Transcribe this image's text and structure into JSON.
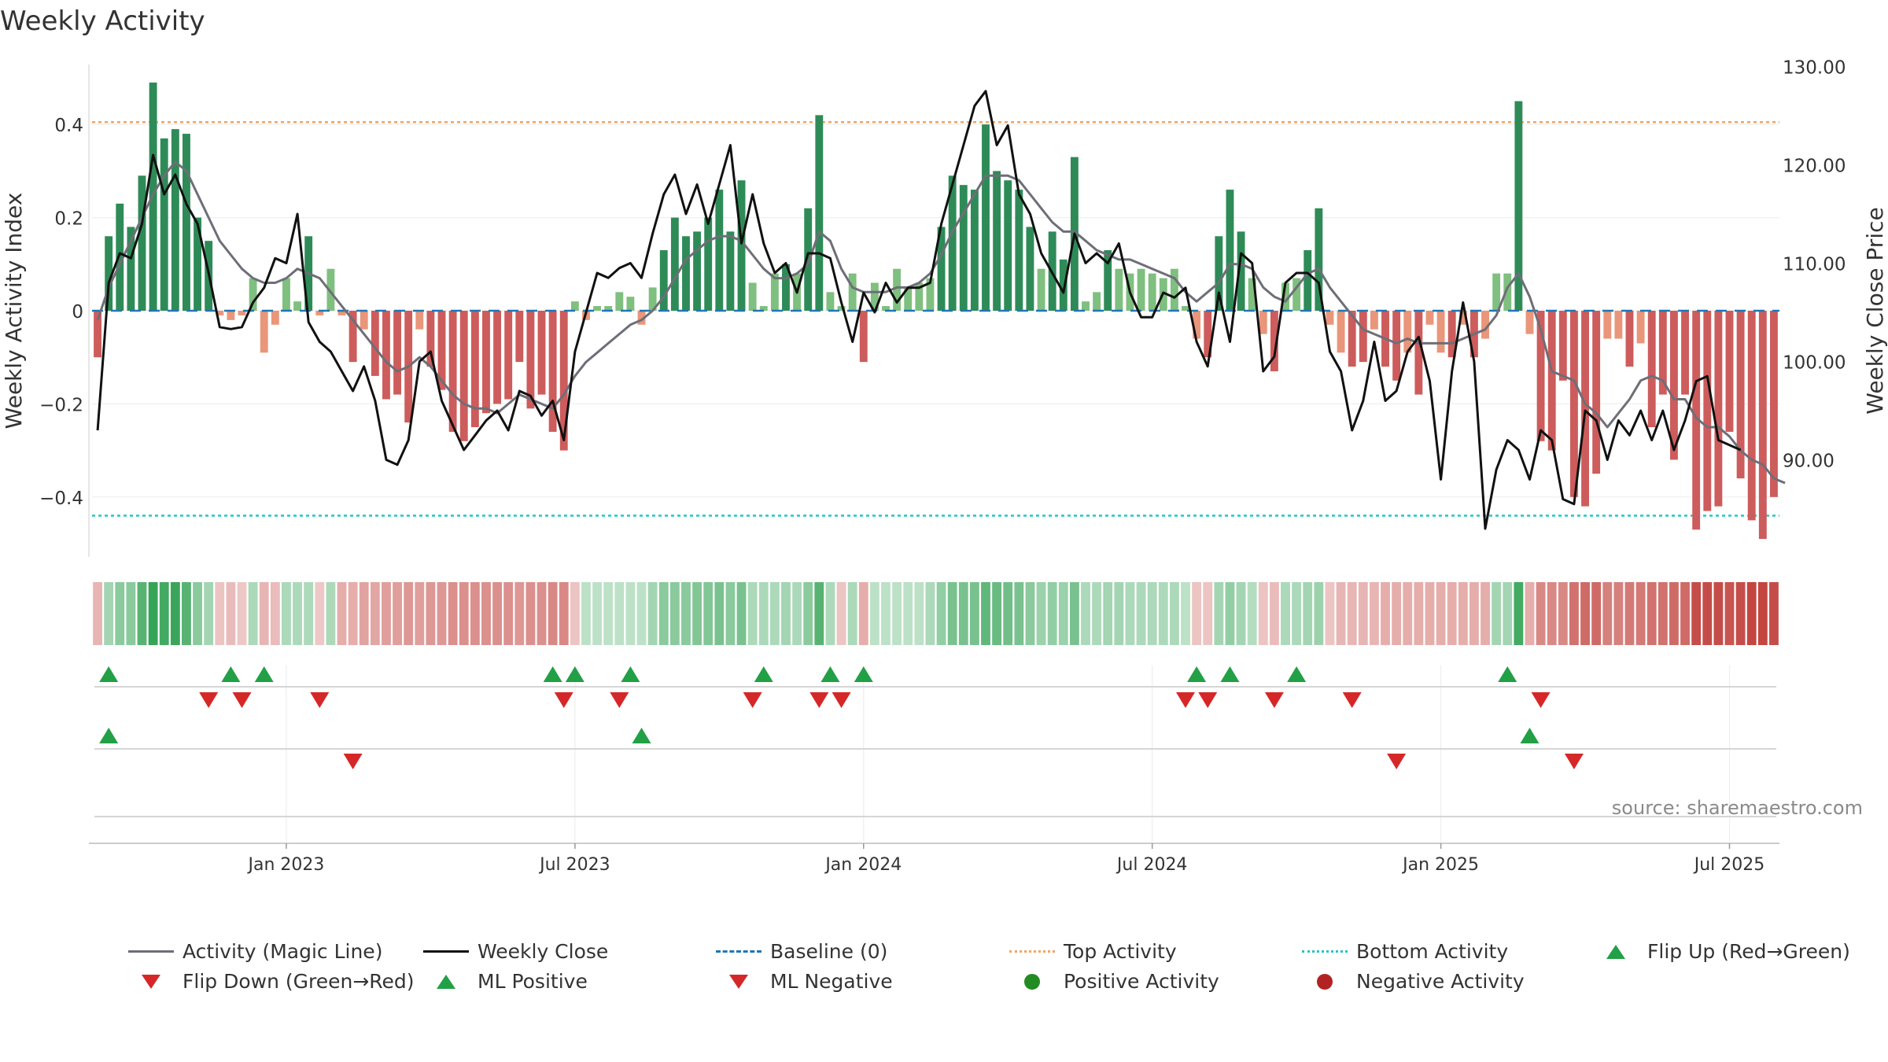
{
  "chart_data": {
    "type": "bar",
    "title": "Weekly Activity",
    "ylabel": "Weekly Activity Index",
    "y2label": "Weekly Close Price",
    "source": "source: sharemaestro.com",
    "ylim": [
      -0.5,
      0.5
    ],
    "y2lim": [
      81,
      130
    ],
    "yticks": [
      {
        "v": 0.4,
        "label": "0.4"
      },
      {
        "v": 0.2,
        "label": "0.2"
      },
      {
        "v": 0,
        "label": "0"
      },
      {
        "v": -0.2,
        "label": "−0.2"
      },
      {
        "v": -0.4,
        "label": "−0.4"
      }
    ],
    "y2ticks": [
      {
        "v": 130,
        "label": "130.00"
      },
      {
        "v": 120,
        "label": "120.00"
      },
      {
        "v": 110,
        "label": "110.00"
      },
      {
        "v": 100,
        "label": "100.00"
      },
      {
        "v": 90,
        "label": "90.00"
      }
    ],
    "xticks": [
      {
        "i": 17,
        "label": "Jan 2023"
      },
      {
        "i": 43,
        "label": "Jul 2023"
      },
      {
        "i": 69,
        "label": "Jan 2024"
      },
      {
        "i": 95,
        "label": "Jul 2024"
      },
      {
        "i": 121,
        "label": "Jan 2025"
      },
      {
        "i": 147,
        "label": "Jul 2025"
      }
    ],
    "top_activity": 0.405,
    "bottom_activity": -0.44,
    "activity": [
      -0.1,
      0.16,
      0.23,
      0.18,
      0.29,
      0.49,
      0.37,
      0.39,
      0.38,
      0.2,
      0.15,
      -0.01,
      -0.02,
      -0.01,
      0.07,
      -0.09,
      -0.03,
      0.07,
      0.02,
      0.16,
      -0.01,
      0.09,
      -0.01,
      -0.11,
      -0.04,
      -0.14,
      -0.19,
      -0.18,
      -0.24,
      -0.04,
      -0.12,
      -0.17,
      -0.26,
      -0.28,
      -0.25,
      -0.22,
      -0.2,
      -0.19,
      -0.11,
      -0.21,
      -0.18,
      -0.26,
      -0.3,
      0.02,
      -0.02,
      0.01,
      0.01,
      0.04,
      0.03,
      -0.03,
      0.05,
      0.13,
      0.2,
      0.16,
      0.17,
      0.2,
      0.26,
      0.17,
      0.28,
      0.06,
      0.01,
      0.08,
      0.1,
      0.08,
      0.22,
      0.42,
      0.04,
      0.01,
      0.08,
      -0.11,
      0.06,
      0.01,
      0.09,
      0.05,
      0.06,
      0.07,
      0.18,
      0.29,
      0.27,
      0.26,
      0.4,
      0.3,
      0.28,
      0.26,
      0.18,
      0.09,
      0.17,
      0.11,
      0.33,
      0.02,
      0.04,
      0.13,
      0.09,
      0.08,
      0.09,
      0.08,
      0.07,
      0.09,
      0.01,
      -0.06,
      -0.1,
      0.16,
      0.26,
      0.17,
      0.07,
      -0.05,
      -0.13,
      0.06,
      0.07,
      0.13,
      0.22,
      -0.03,
      -0.09,
      -0.12,
      -0.11,
      -0.04,
      -0.12,
      -0.15,
      -0.09,
      -0.18,
      -0.03,
      -0.09,
      -0.1,
      -0.03,
      -0.1,
      -0.06,
      0.08,
      0.08,
      0.45,
      -0.05,
      -0.28,
      -0.3,
      -0.15,
      -0.4,
      -0.42,
      -0.35,
      -0.06,
      -0.06,
      -0.12,
      -0.07,
      -0.25,
      -0.18,
      -0.32,
      -0.18,
      -0.47,
      -0.43,
      -0.42,
      -0.26,
      -0.36,
      -0.45,
      -0.49,
      -0.4
    ],
    "magic_line": [
      -0.02,
      0.05,
      0.1,
      0.15,
      0.2,
      0.25,
      0.29,
      0.32,
      0.3,
      0.25,
      0.2,
      0.15,
      0.12,
      0.09,
      0.07,
      0.06,
      0.06,
      0.07,
      0.09,
      0.08,
      0.07,
      0.04,
      0.01,
      -0.02,
      -0.05,
      -0.08,
      -0.11,
      -0.13,
      -0.12,
      -0.1,
      -0.12,
      -0.15,
      -0.18,
      -0.2,
      -0.21,
      -0.21,
      -0.22,
      -0.2,
      -0.18,
      -0.19,
      -0.2,
      -0.21,
      -0.18,
      -0.14,
      -0.11,
      -0.09,
      -0.07,
      -0.05,
      -0.03,
      -0.02,
      0,
      0.03,
      0.07,
      0.11,
      0.13,
      0.15,
      0.16,
      0.16,
      0.15,
      0.12,
      0.09,
      0.07,
      0.07,
      0.08,
      0.1,
      0.17,
      0.15,
      0.09,
      0.05,
      0.04,
      0.04,
      0.04,
      0.05,
      0.05,
      0.06,
      0.08,
      0.12,
      0.17,
      0.21,
      0.25,
      0.29,
      0.29,
      0.29,
      0.28,
      0.25,
      0.22,
      0.19,
      0.17,
      0.17,
      0.15,
      0.13,
      0.12,
      0.11,
      0.11,
      0.1,
      0.09,
      0.08,
      0.07,
      0.04,
      0.02,
      0.04,
      0.06,
      0.1,
      0.1,
      0.09,
      0.05,
      0.03,
      0.02,
      0.05,
      0.08,
      0.09,
      0.05,
      0.02,
      -0.01,
      -0.04,
      -0.05,
      -0.06,
      -0.07,
      -0.06,
      -0.07,
      -0.07,
      -0.07,
      -0.07,
      -0.06,
      -0.05,
      -0.04,
      -0.01,
      0.05,
      0.08,
      0.03,
      -0.04,
      -0.13,
      -0.14,
      -0.15,
      -0.2,
      -0.22,
      -0.25,
      -0.22,
      -0.19,
      -0.15,
      -0.14,
      -0.15,
      -0.19,
      -0.19,
      -0.23,
      -0.25,
      -0.25,
      -0.27,
      -0.3,
      -0.32,
      -0.33,
      -0.36,
      -0.37
    ],
    "weekly_close": [
      93,
      108,
      111,
      110.5,
      114,
      121,
      117,
      119,
      116,
      114,
      109,
      103.5,
      103.3,
      103.5,
      106,
      107.5,
      110.5,
      110,
      115,
      104,
      102,
      101,
      99,
      97,
      99.5,
      96,
      90,
      89.5,
      92,
      100,
      101,
      96,
      93.5,
      91,
      92.5,
      94,
      95,
      93,
      97,
      96.5,
      94.5,
      96,
      92,
      101,
      105,
      109,
      108.5,
      109.5,
      110,
      108.5,
      113,
      117,
      119,
      115,
      118,
      114,
      118,
      122,
      112,
      117,
      112,
      109,
      110,
      107,
      111,
      111,
      110.5,
      106,
      102,
      107,
      105,
      108,
      106,
      107.5,
      107.5,
      108,
      114,
      118,
      122,
      126,
      127.5,
      122,
      124,
      117,
      115,
      111,
      109,
      107,
      113,
      110,
      111,
      110,
      112,
      107,
      104.5,
      104.5,
      107,
      106.5,
      107.5,
      102,
      99.5,
      107,
      102,
      111,
      110,
      99,
      100.5,
      108,
      109,
      109,
      108,
      101,
      99,
      93,
      96,
      102,
      96,
      97,
      101,
      102.5,
      98,
      88,
      99,
      106,
      100,
      83,
      89,
      92,
      91,
      88,
      93,
      92,
      86,
      85.5,
      95,
      94,
      90,
      94,
      92.5,
      95,
      92,
      95,
      91,
      94,
      98,
      98.5,
      92,
      91.5,
      91
    ],
    "strip_values": [
      -0.1,
      0.12,
      0.18,
      0.18,
      0.3,
      0.38,
      0.35,
      0.37,
      0.3,
      0.18,
      0.12,
      -0.06,
      -0.08,
      -0.05,
      0.1,
      -0.1,
      -0.08,
      0.1,
      0.1,
      0.1,
      -0.05,
      0.1,
      -0.12,
      -0.12,
      -0.15,
      -0.14,
      -0.16,
      -0.16,
      -0.18,
      -0.16,
      -0.18,
      -0.18,
      -0.2,
      -0.2,
      -0.2,
      -0.2,
      -0.2,
      -0.2,
      -0.18,
      -0.2,
      -0.2,
      -0.22,
      -0.22,
      -0.06,
      0.06,
      0.06,
      0.06,
      0.06,
      0.06,
      0.06,
      0.12,
      0.18,
      0.18,
      0.18,
      0.2,
      0.2,
      0.22,
      0.18,
      0.22,
      0.1,
      0.1,
      0.1,
      0.12,
      0.1,
      0.18,
      0.3,
      0.1,
      -0.06,
      0.1,
      -0.12,
      0.06,
      0.06,
      0.06,
      0.06,
      0.06,
      0.1,
      0.16,
      0.22,
      0.22,
      0.22,
      0.28,
      0.26,
      0.24,
      0.22,
      0.18,
      0.14,
      0.16,
      0.14,
      0.22,
      0.1,
      0.1,
      0.12,
      0.12,
      0.1,
      0.1,
      0.1,
      0.1,
      0.1,
      0.06,
      -0.06,
      -0.06,
      0.12,
      0.16,
      0.12,
      0.08,
      -0.06,
      -0.08,
      0.1,
      0.1,
      0.12,
      0.14,
      -0.06,
      -0.1,
      -0.1,
      -0.1,
      -0.1,
      -0.12,
      -0.12,
      -0.12,
      -0.12,
      -0.12,
      -0.12,
      -0.12,
      -0.12,
      -0.12,
      -0.12,
      0.12,
      0.12,
      0.35,
      -0.12,
      -0.22,
      -0.22,
      -0.22,
      -0.28,
      -0.3,
      -0.3,
      -0.24,
      -0.24,
      -0.26,
      -0.26,
      -0.28,
      -0.28,
      -0.3,
      -0.3,
      -0.38,
      -0.38,
      -0.38,
      -0.36,
      -0.38,
      -0.4,
      -0.42,
      -0.38
    ],
    "signals": {
      "flip_up": [
        1,
        12,
        15,
        41,
        43,
        48,
        60,
        66,
        69,
        99,
        102,
        108,
        127
      ],
      "flip_down": [
        10,
        13,
        20,
        42,
        47,
        59,
        65,
        67,
        98,
        100,
        106,
        113,
        130
      ],
      "ml_positive": [
        1,
        49,
        129
      ],
      "ml_negative": [
        23,
        117,
        133
      ]
    },
    "legend": [
      {
        "key": "magic",
        "label": "Activity (Magic Line)"
      },
      {
        "key": "close",
        "label": "Weekly Close"
      },
      {
        "key": "baseline",
        "label": "Baseline (0)"
      },
      {
        "key": "top",
        "label": "Top Activity"
      },
      {
        "key": "bottom",
        "label": "Bottom Activity"
      },
      {
        "key": "flip_up",
        "label": "Flip Up (Red→Green)"
      },
      {
        "key": "flip_down",
        "label": "Flip Down (Green→Red)"
      },
      {
        "key": "ml_pos",
        "label": "ML Positive"
      },
      {
        "key": "ml_neg",
        "label": "ML Negative"
      },
      {
        "key": "pos_act",
        "label": "Positive Activity"
      },
      {
        "key": "neg_act",
        "label": "Negative Activity"
      }
    ],
    "colors": {
      "pos_dark": "#2e8b57",
      "pos_light": "#7fbf7f",
      "neg_dark": "#cd5c5c",
      "neg_light": "#e9967a",
      "magic": "#6e6e78",
      "close": "#111111",
      "baseline": "#1f77b4",
      "top": "#f4a460",
      "bottom": "#22c5c5",
      "up": "#22a046",
      "down": "#d62728",
      "dot_pos": "#228b22",
      "dot_neg": "#b22222"
    }
  }
}
